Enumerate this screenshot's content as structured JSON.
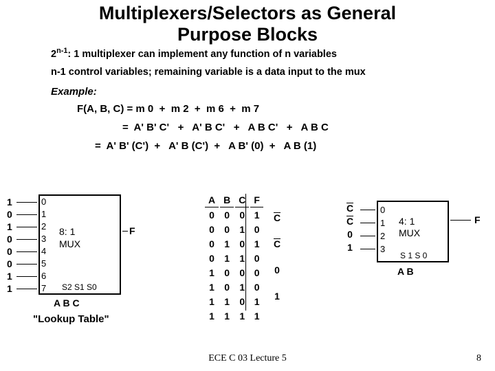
{
  "title_l1": "Multiplexers/Selectors as General",
  "title_l2": "Purpose Blocks",
  "line1_pre": "2",
  "line1_sup": "n-1",
  "line1_post": ": 1 multiplexer can implement any function of n variables",
  "line2": "n-1 control variables; remaining variable is a data input to the mux",
  "example_label": "Example:",
  "eq1": "F(A, B, C) = m 0  +  m 2  +  m 6  +  m 7",
  "eq2": "=  A' B' C'   +   A' B C'   +   A B C'   +   A B C",
  "eq3": "=  A' B' (C')  +   A' B (C')  +   A B' (0)  +   A B (1)",
  "mux8": {
    "inputs": [
      "1",
      "0",
      "1",
      "0",
      "0",
      "0",
      "1",
      "1"
    ],
    "idx": [
      "0",
      "1",
      "2",
      "3",
      "4",
      "5",
      "6",
      "7"
    ],
    "label_l1": "8: 1",
    "label_l2": "MUX",
    "out_label": "F",
    "sel": "S2   S1   S0",
    "sel_inputs": "A      B      C",
    "caption": "\"Lookup Table\""
  },
  "truth": {
    "headers": [
      "A",
      "B",
      "C",
      "F"
    ],
    "rows": [
      [
        "0",
        "0",
        "0",
        "1"
      ],
      [
        "0",
        "0",
        "1",
        "0"
      ],
      [
        "0",
        "1",
        "0",
        "1"
      ],
      [
        "0",
        "1",
        "1",
        "0"
      ],
      [
        "1",
        "0",
        "0",
        "0"
      ],
      [
        "1",
        "0",
        "1",
        "0"
      ],
      [
        "1",
        "1",
        "0",
        "1"
      ],
      [
        "1",
        "1",
        "1",
        "1"
      ]
    ],
    "group_f": [
      "C",
      "C",
      "0",
      "1"
    ],
    "bars": [
      true,
      true,
      false,
      false
    ]
  },
  "mux4": {
    "inputs": [
      "C",
      "C",
      "0",
      "1"
    ],
    "input_bars": [
      true,
      true,
      false,
      false
    ],
    "idx": [
      "0",
      "1",
      "2",
      "3"
    ],
    "label_l1": "4: 1",
    "label_l2": "MUX",
    "out_label": "F",
    "sel": "S 1        S 0",
    "sel_inputs": "A           B"
  },
  "footer": "ECE C 03 Lecture 5",
  "page": "8",
  "colors": {
    "bg": "#ffffff",
    "fg": "#000000"
  }
}
